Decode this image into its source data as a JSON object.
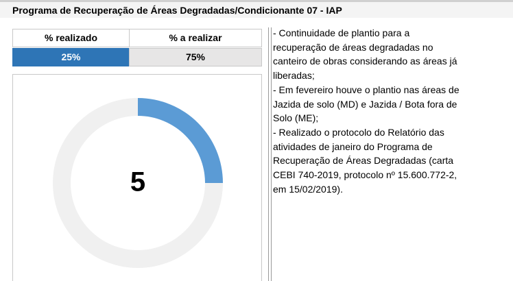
{
  "header": {
    "title": "Programa de Recuperação de Áreas Degradadas/Condicionante 07 - IAP"
  },
  "table": {
    "headers": [
      "% realizado",
      "% a realizar"
    ],
    "rows": [
      [
        "25%",
        "75%"
      ]
    ]
  },
  "chart_data": {
    "type": "donut",
    "values": [
      25,
      75
    ],
    "colors": [
      "#5b9bd5",
      "#f0f0f0"
    ],
    "center_value": 5
  },
  "notes": [
    "- Continuidade de plantio para a",
    "recuperação de áreas degradadas no",
    "canteiro de obras considerando as áreas já",
    "liberadas;",
    "- Em fevereiro houve o plantio nas áreas de",
    "Jazida de solo (MD) e Jazida / Bota fora de",
    "Solo (ME);",
    "- Realizado o protocolo do Relatório das",
    "atividades de janeiro do Programa de",
    "Recuperação de Áreas Degradadas (carta",
    "CEBI 740-2019, protocolo nº 15.600.772-2,",
    "em 15/02/2019)."
  ]
}
